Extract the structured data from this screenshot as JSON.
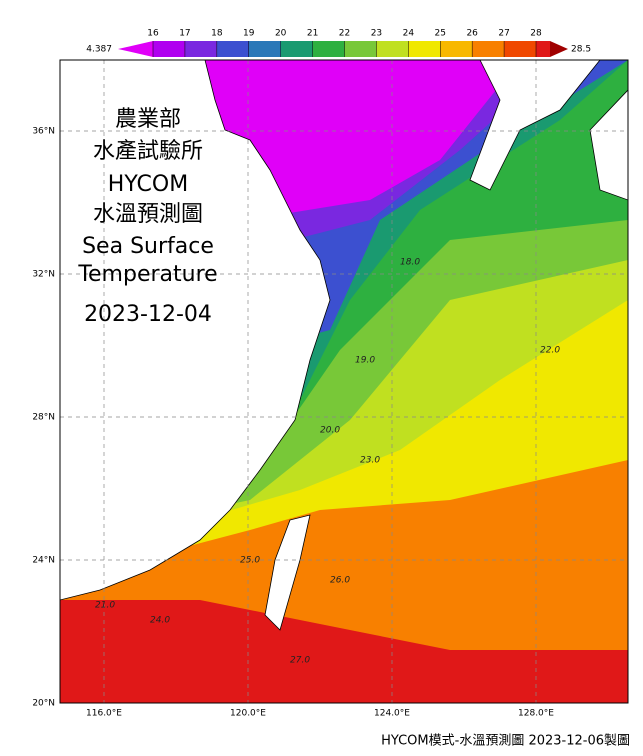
{
  "title_lines": [
    "農業部",
    "水產試驗所",
    "HYCOM",
    "水溫預測圖",
    "Sea Surface",
    "Temperature",
    "2023-12-04"
  ],
  "colorbar": {
    "min": 4.387,
    "max": 28.5,
    "ticks": [
      16,
      17,
      18,
      19,
      20,
      21,
      22,
      23,
      24,
      25,
      26,
      27,
      28
    ],
    "colors": [
      "#e000f8",
      "#b000f0",
      "#7a28e0",
      "#3c50d0",
      "#2a78b8",
      "#1a9a70",
      "#2eb040",
      "#78c838",
      "#c0e020",
      "#f0e800",
      "#f8b800",
      "#f88000",
      "#f04800",
      "#e01818",
      "#a00000"
    ]
  },
  "latitude_labels": [
    "36°N",
    "32°N",
    "28°N",
    "24°N",
    "20°N"
  ],
  "longitude_labels": [
    "116.0°E",
    "120.0°E",
    "124.0°E",
    "128.0°E"
  ],
  "contour_labels": [
    "21.0",
    "22.0",
    "23.0",
    "24.0",
    "25.0",
    "26.0",
    "27.0",
    "18.0",
    "19.0",
    "20.0"
  ],
  "footer": "HYCOM模式-水溫預測圖 2023-12-06製圖"
}
